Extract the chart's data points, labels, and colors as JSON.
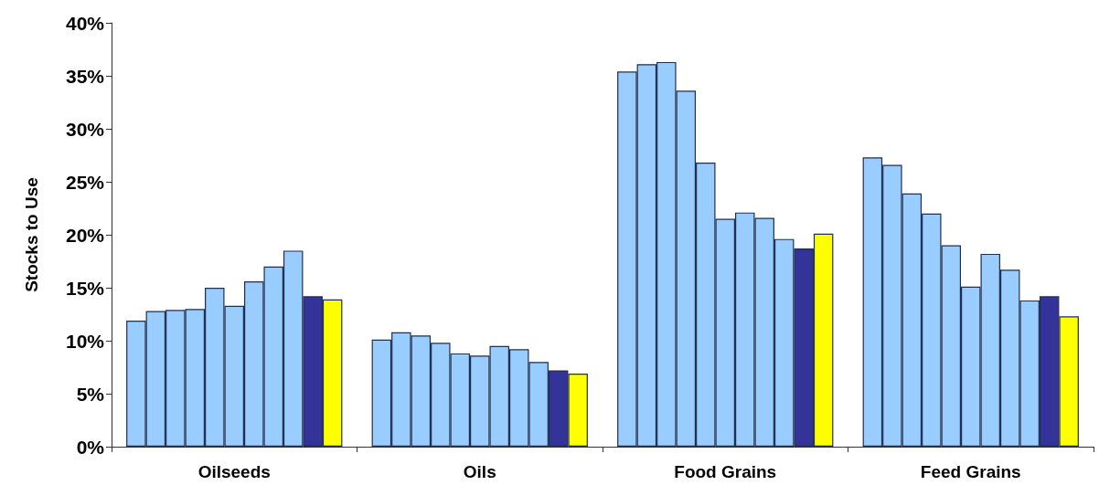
{
  "chart_data": {
    "type": "bar",
    "ylabel": "Stocks to Use",
    "categories": [
      "Oilseeds",
      "Oils",
      "Food Grains",
      "Feed Grains"
    ],
    "series": [
      {
        "color": "#99ccff",
        "values": [
          11.9,
          10.1,
          35.4,
          27.3
        ]
      },
      {
        "color": "#99ccff",
        "values": [
          12.8,
          10.8,
          36.1,
          26.6
        ]
      },
      {
        "color": "#99ccff",
        "values": [
          12.9,
          10.5,
          36.3,
          23.9
        ]
      },
      {
        "color": "#99ccff",
        "values": [
          13.0,
          9.8,
          33.6,
          22.0
        ]
      },
      {
        "color": "#99ccff",
        "values": [
          15.0,
          8.8,
          26.8,
          19.0
        ]
      },
      {
        "color": "#99ccff",
        "values": [
          13.3,
          8.6,
          21.5,
          15.1
        ]
      },
      {
        "color": "#99ccff",
        "values": [
          15.6,
          9.5,
          22.1,
          18.2
        ]
      },
      {
        "color": "#99ccff",
        "values": [
          17.0,
          9.2,
          21.6,
          16.7
        ]
      },
      {
        "color": "#99ccff",
        "values": [
          18.5,
          8.0,
          19.6,
          13.8
        ]
      },
      {
        "color": "#333399",
        "values": [
          14.2,
          7.2,
          18.7,
          14.2
        ]
      },
      {
        "color": "#ffff00",
        "values": [
          13.9,
          6.9,
          20.1,
          12.3
        ]
      }
    ],
    "ylim": [
      0,
      40
    ],
    "yticks": [
      {
        "value": 0,
        "label": "0%"
      },
      {
        "value": 5,
        "label": "5%"
      },
      {
        "value": 10,
        "label": "10%"
      },
      {
        "value": 15,
        "label": "15%"
      },
      {
        "value": 20,
        "label": "20%"
      },
      {
        "value": 25,
        "label": "25%"
      },
      {
        "value": 30,
        "label": "30%"
      },
      {
        "value": 35,
        "label": "35%"
      },
      {
        "value": 40,
        "label": "40%"
      }
    ],
    "grid": false
  }
}
